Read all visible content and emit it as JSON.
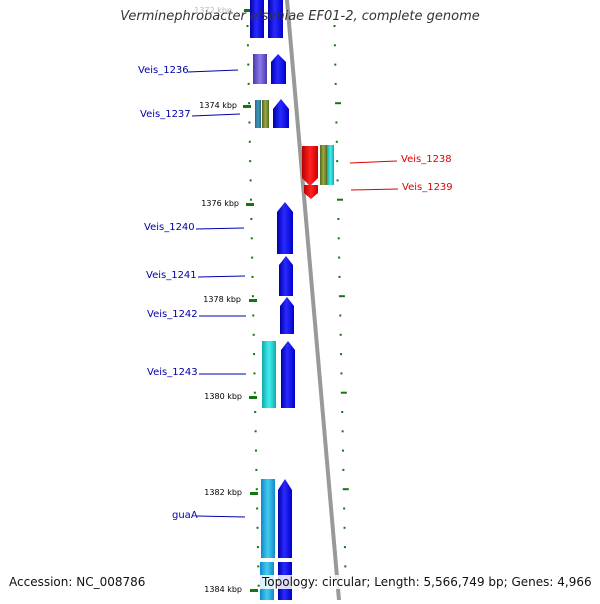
{
  "title": "Verminephrobacter eiseniae EF01-2, complete genome",
  "footer": {
    "accession": "Accession: NC_008786",
    "summary": "Topology: circular; Length: 5,566,749 bp; Genes: 4,966"
  },
  "ruler": {
    "labels": [
      {
        "text": "1372 kbp"
      },
      {
        "text": "1374 kbp"
      },
      {
        "text": "1376 kbp"
      },
      {
        "text": "1378 kbp"
      },
      {
        "text": "1380 kbp"
      },
      {
        "text": "1382 kbp"
      },
      {
        "text": "1384 kbp"
      }
    ]
  },
  "genes_forward": [
    {
      "label": "Veis_1236"
    },
    {
      "label": "Veis_1237"
    },
    {
      "label": "Veis_1240"
    },
    {
      "label": "Veis_1241"
    },
    {
      "label": "Veis_1242"
    },
    {
      "label": "Veis_1243"
    },
    {
      "label": "guaA"
    }
  ],
  "genes_reverse": [
    {
      "label": "Veis_1238"
    },
    {
      "label": "Veis_1239"
    }
  ],
  "colors": {
    "cds_forward": "#1010ee",
    "cds_reverse": "#ee1010",
    "feature_cyan": "#22cccc",
    "feature_purple": "#6a5acd",
    "feature_olive": "#778833",
    "backbone": "#999999",
    "ticks": "#117711",
    "leader_forward": "#0000aa",
    "leader_reverse": "#dd0000"
  }
}
